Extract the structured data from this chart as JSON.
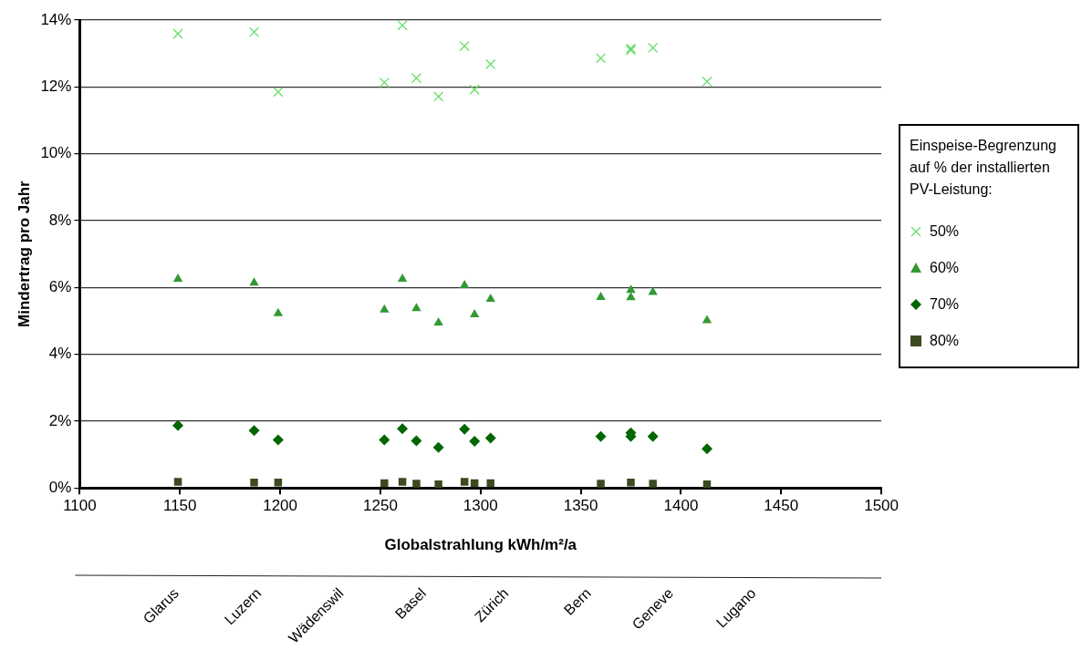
{
  "chart_data": {
    "type": "scatter",
    "xlabel": "Globalstrahlung kWh/m²/a",
    "ylabel": "Mindertrag pro Jahr",
    "legend_title": "Einspeise-Begrenzung auf  % der installierten PV-Leistung:",
    "legend": "right",
    "grid": "y",
    "x": [
      1149,
      1187,
      1199,
      1252,
      1261,
      1268,
      1279,
      1292,
      1297,
      1305,
      1360,
      1375,
      1375,
      1386,
      1413
    ],
    "xlim": [
      1100,
      1500
    ],
    "xticks": [
      1100,
      1150,
      1200,
      1250,
      1300,
      1350,
      1400,
      1450,
      1500
    ],
    "ylim": [
      0,
      14
    ],
    "yticks": [
      {
        "value": 0,
        "label": "0%"
      },
      {
        "value": 2,
        "label": "2%"
      },
      {
        "value": 4,
        "label": "4%"
      },
      {
        "value": 6,
        "label": "6%"
      },
      {
        "value": 8,
        "label": "8%"
      },
      {
        "value": 10,
        "label": "10%"
      },
      {
        "value": 12,
        "label": "12%"
      },
      {
        "value": 14,
        "label": "14%"
      }
    ],
    "series": [
      {
        "name": "50%",
        "color": "#66dd66",
        "marker": "cross",
        "values": [
          13.59,
          13.64,
          11.85,
          12.13,
          13.84,
          12.26,
          11.71,
          13.22,
          11.92,
          12.68,
          12.86,
          13.1,
          13.15,
          13.17,
          12.16
        ]
      },
      {
        "name": "60%",
        "color": "#339933",
        "marker": "triangle",
        "values": [
          6.25,
          6.14,
          5.22,
          5.33,
          6.25,
          5.37,
          4.94,
          6.06,
          5.19,
          5.65,
          5.71,
          5.7,
          5.92,
          5.86,
          5.01
        ]
      },
      {
        "name": "70%",
        "color": "#006600",
        "marker": "diamond",
        "values": [
          1.87,
          1.72,
          1.44,
          1.44,
          1.77,
          1.41,
          1.21,
          1.76,
          1.4,
          1.49,
          1.54,
          1.54,
          1.65,
          1.54,
          1.17
        ]
      },
      {
        "name": "80%",
        "color": "#3d4a20",
        "marker": "square",
        "values": [
          0.18,
          0.16,
          0.16,
          0.14,
          0.18,
          0.13,
          0.11,
          0.18,
          0.14,
          0.14,
          0.13,
          0.16,
          null,
          0.13,
          0.11
        ]
      }
    ],
    "annotations": [
      "Glarus",
      "Luzern",
      "Wädenswil",
      "Basel",
      "Zürich",
      "Bern",
      "Geneve",
      "Lugano"
    ]
  }
}
